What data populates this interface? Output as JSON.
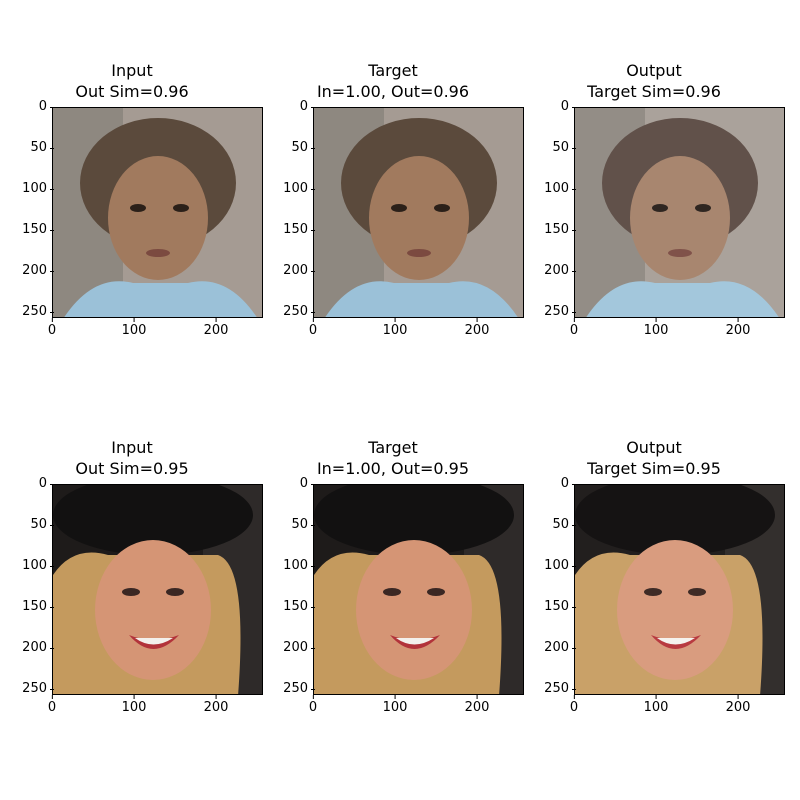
{
  "panels": [
    {
      "title_line1": "Input",
      "title_line2": "Out Sim=0.96",
      "image": "portrait-child"
    },
    {
      "title_line1": "Target",
      "title_line2": "In=1.00, Out=0.96",
      "image": "portrait-child"
    },
    {
      "title_line1": "Output",
      "title_line2": "Target Sim=0.96",
      "image": "portrait-child"
    },
    {
      "title_line1": "Input",
      "title_line2": "Out Sim=0.95",
      "image": "portrait-woman-smiling"
    },
    {
      "title_line1": "Target",
      "title_line2": "In=1.00, Out=0.95",
      "image": "portrait-woman-smiling"
    },
    {
      "title_line1": "Output",
      "title_line2": "Target Sim=0.95",
      "image": "portrait-woman-smiling"
    }
  ],
  "yticks": [
    "0",
    "50",
    "100",
    "150",
    "200",
    "250"
  ],
  "xticks": [
    "0",
    "100",
    "200"
  ]
}
